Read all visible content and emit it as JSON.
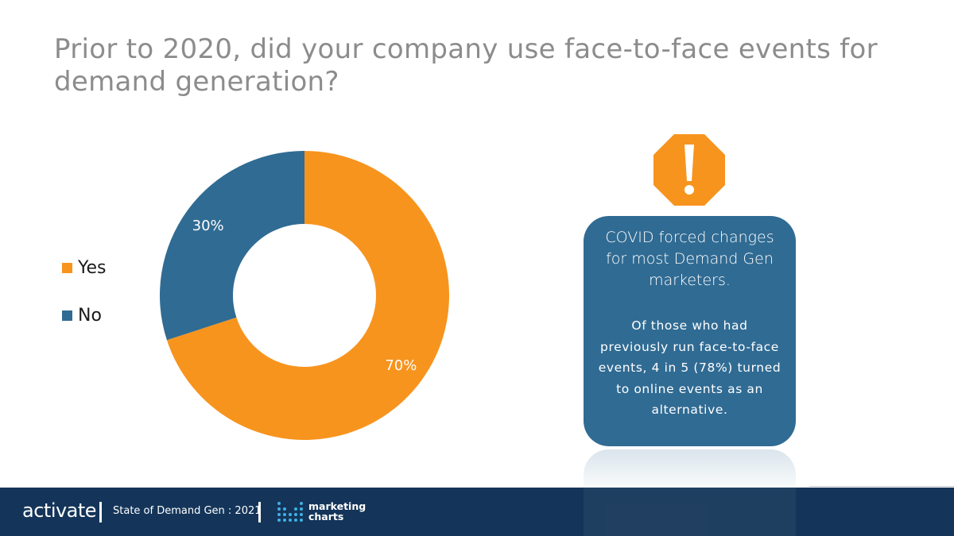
{
  "chart_data": {
    "type": "pie",
    "title": "Prior to 2020, did your company use face-to-face events for demand generation?",
    "categories": [
      "Yes",
      "No"
    ],
    "values": [
      70,
      30
    ],
    "value_labels": [
      "70%",
      "30%"
    ],
    "colors": [
      "#f7941e",
      "#306b93"
    ],
    "donut": true,
    "legend_position": "left"
  },
  "callout": {
    "headline": "COVID forced changes for most Demand Gen marketers.",
    "body": "Of those who had previously run face-to-face events, 4 in 5 (78%) turned to online events as an alternative.",
    "color": "#306b93",
    "warning_icon": "warning-octagon-icon",
    "warning_color": "#f7941e"
  },
  "footer": {
    "brand": "activate",
    "report": "State of Demand Gen : 2021",
    "partner_line1": "marketing",
    "partner_line2": "charts",
    "color": "#143559"
  }
}
